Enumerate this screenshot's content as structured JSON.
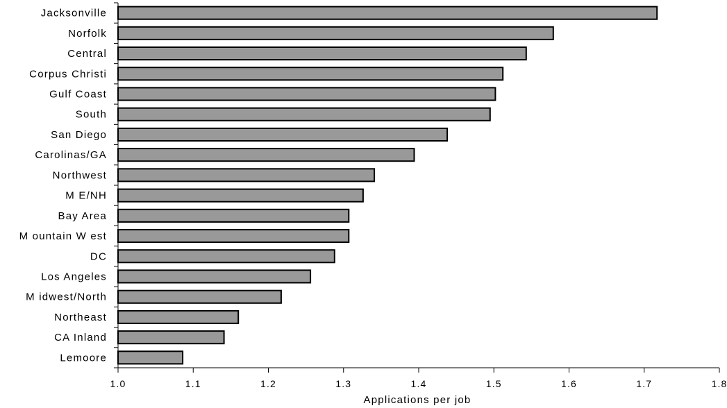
{
  "chart_data": {
    "type": "bar",
    "orientation": "horizontal",
    "title": "",
    "xlabel": "Applications per job",
    "ylabel": "",
    "xlim": [
      1.0,
      1.8
    ],
    "x_ticks": [
      "1.0",
      "1.1",
      "1.2",
      "1.3",
      "1.4",
      "1.5",
      "1.6",
      "1.7",
      "1.8"
    ],
    "grid": false,
    "legend": "none",
    "bar_color": "#999999",
    "categories": [
      "Jacksonville",
      "Norfolk",
      "Central",
      "Corpus Christi",
      "Gulf Coast",
      "South",
      "San Diego",
      "Carolinas/GA",
      "Northwest",
      "M E/NH",
      "Bay Area",
      "M ountain W est",
      "DC",
      "Los Angeles",
      "M idwest/North",
      "Northeast",
      "CA Inland",
      "Lemoore"
    ],
    "values": [
      1.717,
      1.579,
      1.543,
      1.512,
      1.502,
      1.495,
      1.438,
      1.394,
      1.341,
      1.326,
      1.307,
      1.307,
      1.288,
      1.256,
      1.217,
      1.16,
      1.141,
      1.086
    ]
  }
}
